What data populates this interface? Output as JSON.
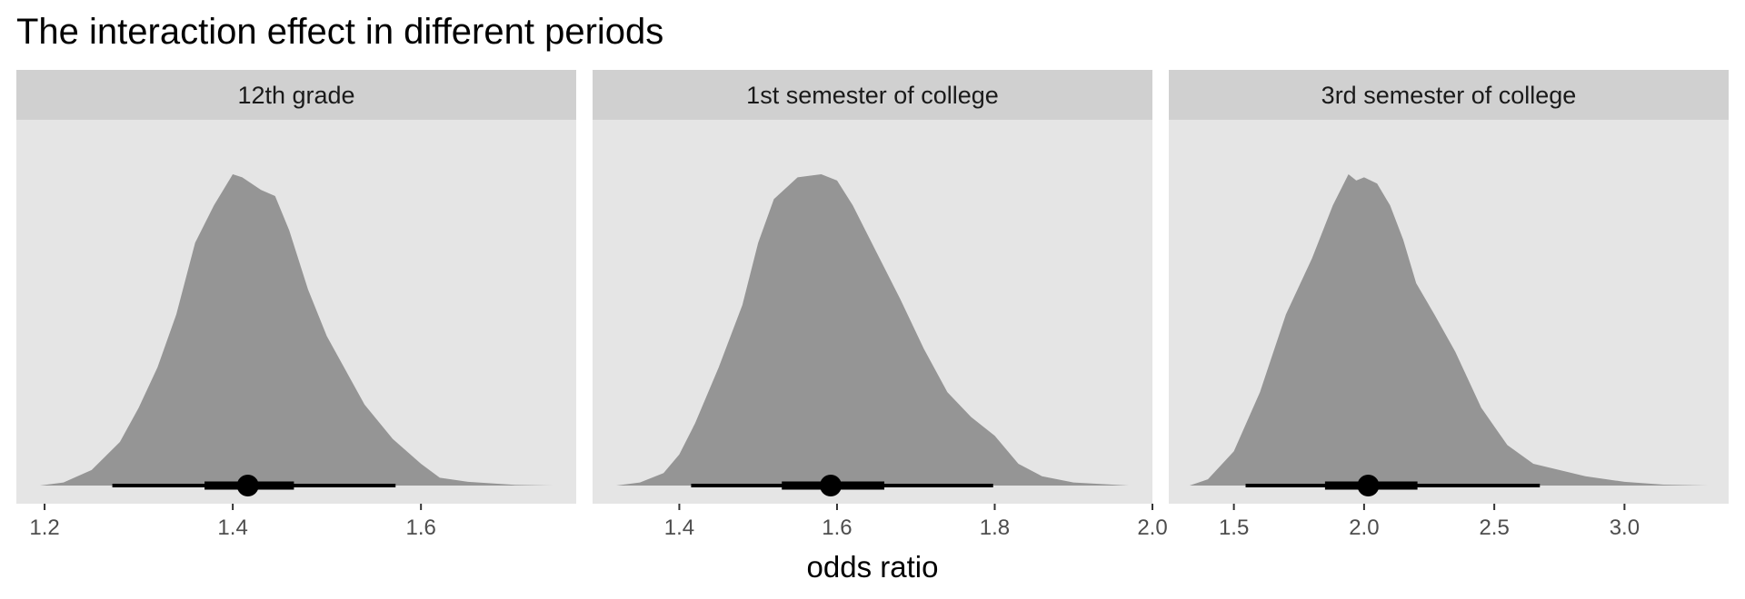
{
  "chart_data": {
    "type": "area",
    "title": "The interaction effect in different periods",
    "xlabel": "odds ratio",
    "ylabel": "",
    "grid": false,
    "colors": {
      "panel_bg": "#e5e5e5",
      "strip_bg": "#d0d0d0",
      "density_fill": "#959595",
      "interval": "#000000",
      "text": "#000000",
      "tick_text": "#4d4d4d"
    },
    "panels": [
      {
        "strip_label": "12th grade",
        "xlim": [
          1.17,
          1.765
        ],
        "ticks": [
          1.2,
          1.4,
          1.6
        ],
        "tick_labels": [
          "1.2",
          "1.4",
          "1.6"
        ],
        "density": [
          [
            1.195,
            0.0
          ],
          [
            1.22,
            0.01
          ],
          [
            1.25,
            0.05
          ],
          [
            1.28,
            0.14
          ],
          [
            1.3,
            0.25
          ],
          [
            1.32,
            0.38
          ],
          [
            1.34,
            0.55
          ],
          [
            1.36,
            0.78
          ],
          [
            1.38,
            0.9
          ],
          [
            1.4,
            1.0
          ],
          [
            1.41,
            0.99
          ],
          [
            1.43,
            0.95
          ],
          [
            1.445,
            0.93
          ],
          [
            1.46,
            0.82
          ],
          [
            1.48,
            0.63
          ],
          [
            1.5,
            0.48
          ],
          [
            1.52,
            0.37
          ],
          [
            1.54,
            0.26
          ],
          [
            1.57,
            0.15
          ],
          [
            1.6,
            0.07
          ],
          [
            1.62,
            0.025
          ],
          [
            1.65,
            0.012
          ],
          [
            1.7,
            0.002
          ],
          [
            1.74,
            0.0
          ]
        ],
        "point": 1.416,
        "interval_66": [
          1.37,
          1.465
        ],
        "interval_95": [
          1.272,
          1.573
        ]
      },
      {
        "strip_label": "1st semester of college",
        "xlim": [
          1.29,
          2.0
        ],
        "ticks": [
          1.4,
          1.6,
          1.8,
          2.0
        ],
        "tick_labels": [
          "1.4",
          "1.6",
          "1.8",
          "2.0"
        ],
        "density": [
          [
            1.32,
            0.0
          ],
          [
            1.35,
            0.01
          ],
          [
            1.38,
            0.04
          ],
          [
            1.4,
            0.1
          ],
          [
            1.42,
            0.2
          ],
          [
            1.45,
            0.38
          ],
          [
            1.48,
            0.58
          ],
          [
            1.5,
            0.78
          ],
          [
            1.52,
            0.92
          ],
          [
            1.55,
            0.99
          ],
          [
            1.58,
            1.0
          ],
          [
            1.6,
            0.98
          ],
          [
            1.62,
            0.9
          ],
          [
            1.65,
            0.75
          ],
          [
            1.68,
            0.6
          ],
          [
            1.71,
            0.44
          ],
          [
            1.74,
            0.3
          ],
          [
            1.77,
            0.22
          ],
          [
            1.8,
            0.16
          ],
          [
            1.83,
            0.07
          ],
          [
            1.86,
            0.03
          ],
          [
            1.9,
            0.01
          ],
          [
            1.97,
            0.0
          ]
        ],
        "point": 1.592,
        "interval_66": [
          1.53,
          1.66
        ],
        "interval_95": [
          1.415,
          1.798
        ]
      },
      {
        "strip_label": "3rd semester of college",
        "xlim": [
          1.25,
          3.4
        ],
        "ticks": [
          1.5,
          2.0,
          2.5,
          3.0
        ],
        "tick_labels": [
          "1.5",
          "2.0",
          "2.5",
          "3.0"
        ],
        "density": [
          [
            1.33,
            0.0
          ],
          [
            1.4,
            0.02
          ],
          [
            1.5,
            0.11
          ],
          [
            1.6,
            0.3
          ],
          [
            1.7,
            0.55
          ],
          [
            1.8,
            0.73
          ],
          [
            1.88,
            0.9
          ],
          [
            1.94,
            1.0
          ],
          [
            1.97,
            0.98
          ],
          [
            2.0,
            0.99
          ],
          [
            2.05,
            0.97
          ],
          [
            2.1,
            0.9
          ],
          [
            2.15,
            0.79
          ],
          [
            2.2,
            0.65
          ],
          [
            2.27,
            0.55
          ],
          [
            2.35,
            0.43
          ],
          [
            2.45,
            0.25
          ],
          [
            2.55,
            0.13
          ],
          [
            2.65,
            0.07
          ],
          [
            2.75,
            0.05
          ],
          [
            2.85,
            0.03
          ],
          [
            3.0,
            0.012
          ],
          [
            3.15,
            0.003
          ],
          [
            3.32,
            0.0
          ]
        ],
        "point": 2.016,
        "interval_66": [
          1.85,
          2.205
        ],
        "interval_95": [
          1.545,
          2.675
        ]
      }
    ]
  }
}
